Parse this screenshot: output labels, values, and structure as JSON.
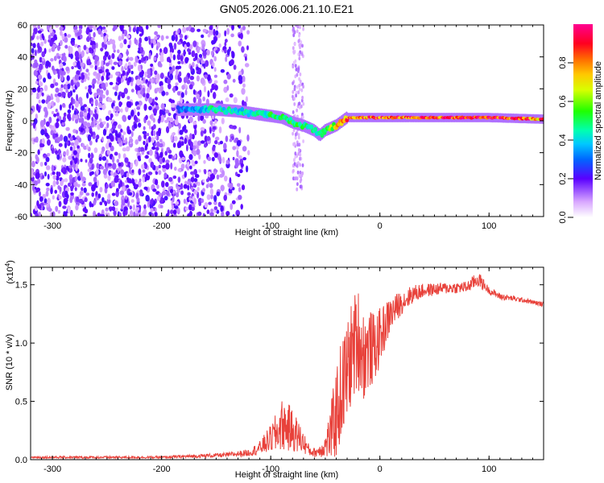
{
  "title": "GN05.2026.006.21.10.E21",
  "chart_data": [
    {
      "type": "heatmap",
      "name": "spectrogram",
      "xlabel": "Height of straight line (km)",
      "ylabel": "Frequency (Hz)",
      "xlim": [
        -320,
        150
      ],
      "ylim": [
        -60,
        60
      ],
      "xticks": [
        -300,
        -200,
        -100,
        0,
        100
      ],
      "xtick_labels": [
        "-300",
        "-200",
        "-100",
        "0",
        "100"
      ],
      "yticks": [
        -60,
        -40,
        -20,
        0,
        20,
        40,
        60
      ],
      "ytick_labels": [
        "-60",
        "-40",
        "-20",
        "0",
        "20",
        "40",
        "60"
      ],
      "signal_track": {
        "x": [
          -180,
          -150,
          -130,
          -110,
          -90,
          -80,
          -70,
          -60,
          -55,
          -50,
          -40,
          -30,
          0,
          50,
          100,
          150
        ],
        "y": [
          7,
          7,
          6,
          4,
          2,
          -1,
          -3,
          -6,
          -9,
          -6,
          -3,
          2,
          2,
          2,
          2,
          1
        ],
        "amplitude": [
          0.3,
          0.45,
          0.4,
          0.45,
          0.5,
          0.5,
          0.45,
          0.45,
          0.4,
          0.5,
          0.7,
          0.8,
          0.85,
          0.85,
          0.9,
          0.8
        ]
      },
      "colorbar": {
        "label": "Normalized spectral amplitude",
        "range": [
          0,
          1
        ],
        "ticks": [
          0.0,
          0.2,
          0.4,
          0.6,
          0.8
        ],
        "tick_labels": [
          "0.0",
          "0.2",
          "0.4",
          "0.6",
          "0.8"
        ]
      }
    },
    {
      "type": "line",
      "name": "snr",
      "xlabel": "Height of straight line (km)",
      "ylabel": "SNR (10 * v/v)",
      "y_scale_label": "(x10",
      "y_scale_exp": "4",
      "xlim": [
        -320,
        150
      ],
      "ylim": [
        0,
        1.65
      ],
      "xticks": [
        -300,
        -200,
        -100,
        0,
        100
      ],
      "xtick_labels": [
        "-300",
        "-200",
        "-100",
        "0",
        "100"
      ],
      "yticks": [
        0.0,
        0.5,
        1.0,
        1.5
      ],
      "ytick_labels": [
        "0.0",
        "0.5",
        "1.0",
        "1.5"
      ],
      "series_color": "#e8413a",
      "envelope": {
        "x": [
          -320,
          -200,
          -140,
          -120,
          -110,
          -100,
          -95,
          -90,
          -85,
          -80,
          -75,
          -70,
          -65,
          -60,
          -55,
          -50,
          -45,
          -40,
          -35,
          -30,
          -25,
          -20,
          -15,
          -10,
          -5,
          0,
          10,
          20,
          30,
          40,
          60,
          80,
          90,
          100,
          110,
          130,
          150
        ],
        "y": [
          0.02,
          0.02,
          0.04,
          0.06,
          0.1,
          0.18,
          0.22,
          0.3,
          0.28,
          0.25,
          0.2,
          0.15,
          0.08,
          0.06,
          0.08,
          0.12,
          0.22,
          0.4,
          0.6,
          0.75,
          0.95,
          1.05,
          0.9,
          0.95,
          0.95,
          1.05,
          1.25,
          1.35,
          1.42,
          1.45,
          1.47,
          1.48,
          1.55,
          1.45,
          1.4,
          1.37,
          1.33
        ],
        "noise": [
          0.01,
          0.01,
          0.02,
          0.03,
          0.06,
          0.12,
          0.18,
          0.22,
          0.22,
          0.18,
          0.15,
          0.1,
          0.05,
          0.04,
          0.06,
          0.1,
          0.25,
          0.4,
          0.45,
          0.45,
          0.45,
          0.45,
          0.4,
          0.35,
          0.3,
          0.25,
          0.15,
          0.1,
          0.08,
          0.06,
          0.05,
          0.05,
          0.07,
          0.03,
          0.03,
          0.02,
          0.02
        ]
      }
    }
  ]
}
